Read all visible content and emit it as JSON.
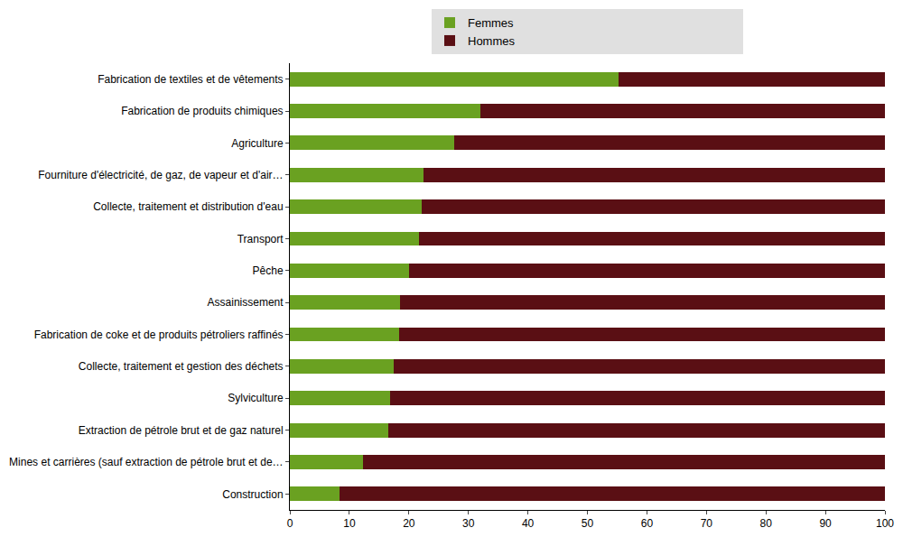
{
  "chart_data": {
    "type": "bar",
    "orientation": "horizontal",
    "stacked": true,
    "categories": [
      "Fabrication de textiles et de vêtements",
      "Fabrication de produits chimiques",
      "Agriculture",
      "Fourniture d'électricité, de gaz, de vapeur et d'air…",
      "Collecte, traitement et distribution d'eau",
      "Transport",
      "Pêche",
      "Assainissement",
      "Fabrication de coke et de produits pétroliers raffinés",
      "Collecte, traitement et gestion des déchets",
      "Sylviculture",
      "Extraction de pétrole brut et de gaz naturel",
      "Mines et carrières (sauf extraction de pétrole brut et de…",
      "Construction"
    ],
    "series": [
      {
        "name": "Femmes",
        "color": "#6aa121",
        "values": [
          55.3,
          32,
          27.6,
          22.4,
          22.2,
          21.7,
          20,
          18.5,
          18.3,
          17.5,
          16.8,
          16.5,
          12.3,
          8.4
        ]
      },
      {
        "name": "Hommes",
        "color": "#5a0f14",
        "values": [
          44.7,
          68,
          72.4,
          77.6,
          77.8,
          78.3,
          80,
          81.5,
          81.7,
          82.5,
          83.2,
          83.5,
          87.7,
          91.6
        ]
      }
    ],
    "xlim": [
      0,
      100
    ],
    "xticks": [
      0,
      10,
      20,
      30,
      40,
      50,
      60,
      70,
      80,
      90,
      100
    ],
    "grid": false,
    "legend": "top"
  }
}
